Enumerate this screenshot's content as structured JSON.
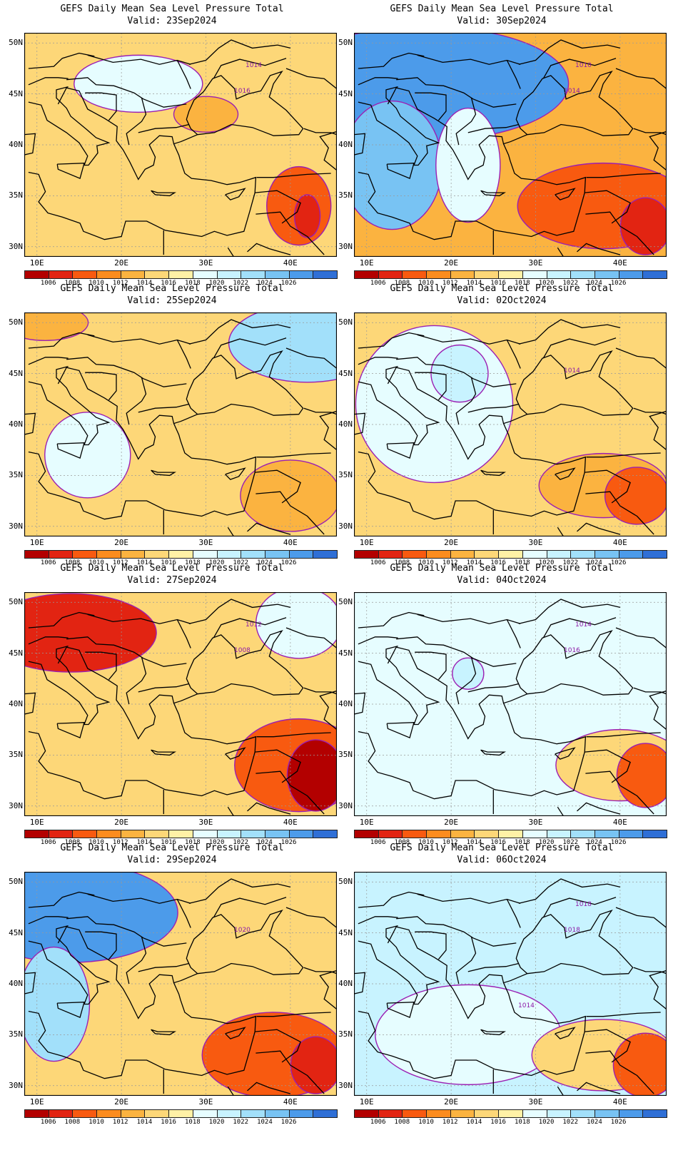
{
  "product_title": "GEFS Daily Mean Sea Level Pressure Total",
  "valid_prefix": "Valid:",
  "lat_labels": [
    "50N",
    "45N",
    "40N",
    "35N",
    "30N"
  ],
  "lon_labels": [
    "10E",
    "20E",
    "30E",
    "40E"
  ],
  "colorbar": {
    "colors": [
      "#b30000",
      "#e22412",
      "#f85a10",
      "#fc8c1e",
      "#fbb340",
      "#fdd778",
      "#fff1a6",
      "#e6fdff",
      "#c8f3ff",
      "#a2e0fa",
      "#78c3f3",
      "#4c9bea",
      "#2f6fd6"
    ],
    "labels": [
      "1006",
      "1008",
      "1010",
      "1012",
      "1014",
      "1016",
      "1018",
      "1020",
      "1022",
      "1024",
      "1026"
    ]
  },
  "panels": [
    {
      "valid": "23Sep2024",
      "contour_labels": [
        "1016",
        "1014"
      ],
      "fill": "#fdd778",
      "blobs": [
        {
          "lon": 41,
          "lat": 34,
          "rx": 45,
          "ry": 55,
          "c": "#f85a10"
        },
        {
          "lon": 42,
          "lat": 33,
          "rx": 18,
          "ry": 30,
          "c": "#e22412"
        },
        {
          "lon": 30,
          "lat": 43,
          "rx": 45,
          "ry": 25,
          "c": "#fbb340"
        },
        {
          "lon": 22,
          "lat": 46,
          "rx": 90,
          "ry": 40,
          "c": "#e6fdff"
        }
      ]
    },
    {
      "valid": "30Sep2024",
      "contour_labels": [
        "1014",
        "1010"
      ],
      "fill": "#fbb340",
      "blobs": [
        {
          "lon": 17,
          "lat": 46,
          "rx": 200,
          "ry": 80,
          "c": "#4c9bea"
        },
        {
          "lon": 13,
          "lat": 38,
          "rx": 70,
          "ry": 90,
          "c": "#78c3f3"
        },
        {
          "lon": 22,
          "lat": 38,
          "rx": 45,
          "ry": 80,
          "c": "#e6fdff"
        },
        {
          "lon": 38,
          "lat": 34,
          "rx": 120,
          "ry": 60,
          "c": "#f85a10"
        },
        {
          "lon": 43,
          "lat": 32,
          "rx": 35,
          "ry": 40,
          "c": "#e22412"
        }
      ]
    },
    {
      "valid": "25Sep2024",
      "contour_labels": [],
      "fill": "#fdd778",
      "blobs": [
        {
          "lon": 42,
          "lat": 48,
          "rx": 110,
          "ry": 55,
          "c": "#a2e0fa"
        },
        {
          "lon": 16,
          "lat": 37,
          "rx": 60,
          "ry": 60,
          "c": "#e6fdff"
        },
        {
          "lon": 40,
          "lat": 33,
          "rx": 70,
          "ry": 50,
          "c": "#fbb340"
        },
        {
          "lon": 11,
          "lat": 50,
          "rx": 60,
          "ry": 25,
          "c": "#fbb340"
        }
      ]
    },
    {
      "valid": "02Oct2024",
      "contour_labels": [
        "1014"
      ],
      "fill": "#fdd778",
      "blobs": [
        {
          "lon": 18,
          "lat": 42,
          "rx": 110,
          "ry": 110,
          "c": "#e6fdff"
        },
        {
          "lon": 21,
          "lat": 45,
          "rx": 40,
          "ry": 40,
          "c": "#c8f3ff"
        },
        {
          "lon": 38,
          "lat": 34,
          "rx": 90,
          "ry": 45,
          "c": "#fbb340"
        },
        {
          "lon": 42,
          "lat": 33,
          "rx": 45,
          "ry": 40,
          "c": "#f85a10"
        }
      ]
    },
    {
      "valid": "27Sep2024",
      "contour_labels": [
        "1008",
        "1012"
      ],
      "fill": "#fdd778",
      "blobs": [
        {
          "lon": 14,
          "lat": 47,
          "rx": 120,
          "ry": 55,
          "c": "#e22412"
        },
        {
          "lon": 41,
          "lat": 34,
          "rx": 90,
          "ry": 65,
          "c": "#f85a10"
        },
        {
          "lon": 43,
          "lat": 33,
          "rx": 40,
          "ry": 50,
          "c": "#b30000"
        },
        {
          "lon": 41,
          "lat": 48,
          "rx": 60,
          "ry": 50,
          "c": "#e6fdff"
        }
      ]
    },
    {
      "valid": "04Oct2024",
      "contour_labels": [
        "1016",
        "1014"
      ],
      "fill": "#e6fdff",
      "blobs": [
        {
          "lon": 40,
          "lat": 34,
          "rx": 90,
          "ry": 50,
          "c": "#fdd778"
        },
        {
          "lon": 43,
          "lat": 33,
          "rx": 40,
          "ry": 45,
          "c": "#f85a10"
        },
        {
          "lon": 22,
          "lat": 43,
          "rx": 22,
          "ry": 22,
          "c": "#c8f3ff"
        }
      ]
    },
    {
      "valid": "29Sep2024",
      "contour_labels": [
        "1020"
      ],
      "fill": "#fdd778",
      "blobs": [
        {
          "lon": 14,
          "lat": 47,
          "rx": 150,
          "ry": 70,
          "c": "#4c9bea"
        },
        {
          "lon": 12,
          "lat": 38,
          "rx": 50,
          "ry": 80,
          "c": "#a2e0fa"
        },
        {
          "lon": 38,
          "lat": 33,
          "rx": 100,
          "ry": 60,
          "c": "#f85a10"
        },
        {
          "lon": 43,
          "lat": 32,
          "rx": 35,
          "ry": 40,
          "c": "#e22412"
        }
      ]
    },
    {
      "valid": "06Oct2024",
      "contour_labels": [
        "1018",
        "1018",
        "1014"
      ],
      "fill": "#c8f3ff",
      "blobs": [
        {
          "lon": 22,
          "lat": 35,
          "rx": 130,
          "ry": 70,
          "c": "#e6fdff"
        },
        {
          "lon": 38,
          "lat": 33,
          "rx": 100,
          "ry": 50,
          "c": "#fdd778"
        },
        {
          "lon": 43,
          "lat": 32,
          "rx": 45,
          "ry": 45,
          "c": "#f85a10"
        }
      ]
    }
  ]
}
